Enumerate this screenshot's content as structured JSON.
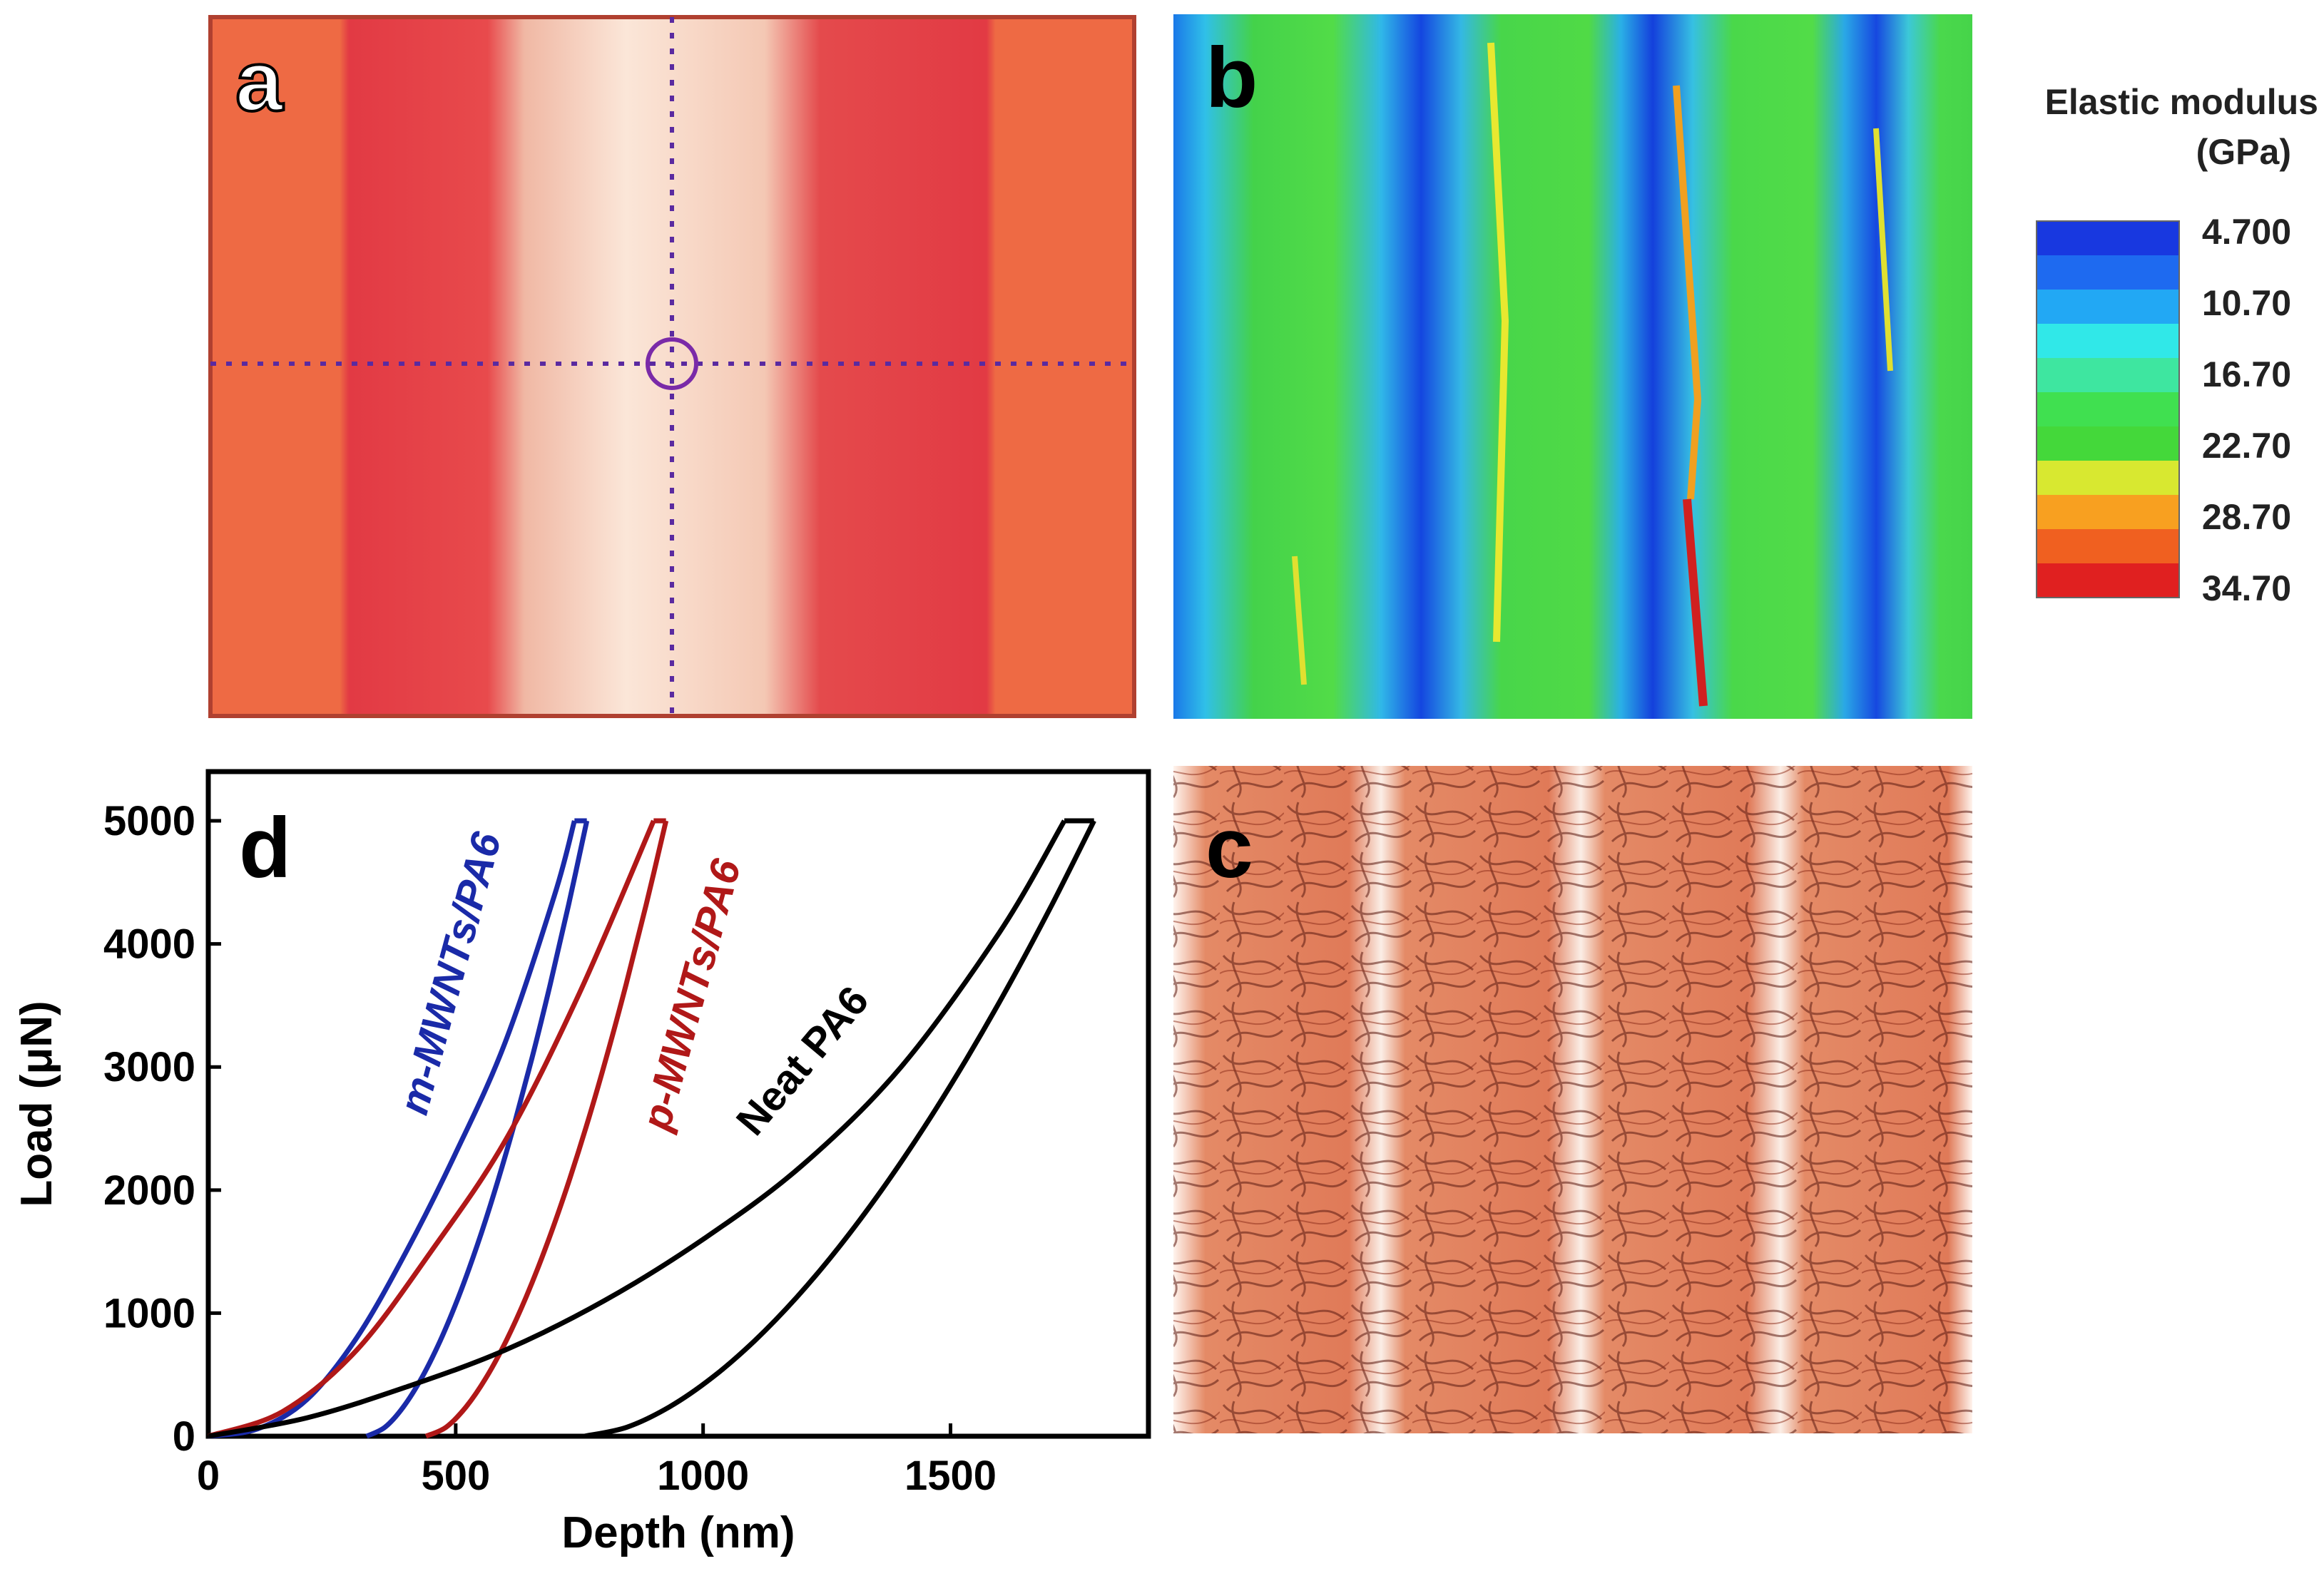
{
  "panels": {
    "a": {
      "label": "a"
    },
    "b": {
      "label": "b"
    },
    "c": {
      "label": "c"
    },
    "d": {
      "label": "d"
    }
  },
  "colorbar": {
    "title_line1": "Elastic modulus",
    "title_line2": "(GPa)",
    "ticks": [
      "4.700",
      "10.70",
      "16.70",
      "22.70",
      "28.70",
      "34.70"
    ],
    "colors": [
      "#1838e0",
      "#1e6af0",
      "#22a8f4",
      "#30e8e8",
      "#3ee6a0",
      "#40e050",
      "#44d83a",
      "#d8e830",
      "#f8a020",
      "#f06020",
      "#e02020"
    ]
  },
  "chart_data": {
    "type": "line",
    "panel": "d",
    "xlabel": "Depth (nm)",
    "ylabel": "Load (μN)",
    "xlim": [
      0,
      1900
    ],
    "ylim": [
      0,
      5400
    ],
    "xticks": [
      0,
      500,
      1000,
      1500
    ],
    "yticks": [
      0,
      1000,
      2000,
      3000,
      4000,
      5000
    ],
    "xtick_labels": [
      "0",
      "500",
      "1000",
      "1500"
    ],
    "ytick_labels": [
      "0",
      "1000",
      "2000",
      "3000",
      "4000",
      "5000"
    ],
    "series": [
      {
        "name": "m-MWNTs/PA6",
        "color": "#1a2aa8",
        "peak_depth": 740,
        "peak_load": 5000,
        "hold_depth": 765,
        "residual_depth": 320,
        "loading": [
          [
            0,
            0
          ],
          [
            100,
            60
          ],
          [
            200,
            300
          ],
          [
            300,
            800
          ],
          [
            400,
            1500
          ],
          [
            500,
            2300
          ],
          [
            600,
            3200
          ],
          [
            700,
            4400
          ],
          [
            740,
            5000
          ]
        ]
      },
      {
        "name": "p-MWNTs/PA6",
        "color": "#b01818",
        "peak_depth": 900,
        "peak_load": 5000,
        "hold_depth": 925,
        "residual_depth": 440,
        "loading": [
          [
            0,
            0
          ],
          [
            150,
            200
          ],
          [
            300,
            700
          ],
          [
            450,
            1500
          ],
          [
            600,
            2400
          ],
          [
            750,
            3600
          ],
          [
            900,
            5000
          ]
        ]
      },
      {
        "name": "Neat PA6",
        "color": "#000000",
        "peak_depth": 1730,
        "peak_load": 5000,
        "hold_depth": 1790,
        "residual_depth": 760,
        "loading": [
          [
            0,
            0
          ],
          [
            200,
            150
          ],
          [
            400,
            400
          ],
          [
            600,
            700
          ],
          [
            800,
            1100
          ],
          [
            1000,
            1600
          ],
          [
            1200,
            2200
          ],
          [
            1400,
            3000
          ],
          [
            1600,
            4100
          ],
          [
            1730,
            5000
          ]
        ]
      }
    ],
    "curve_labels": [
      "m-MWNTs/PA6",
      "p-MWNTs/PA6",
      "Neat PA6"
    ]
  }
}
